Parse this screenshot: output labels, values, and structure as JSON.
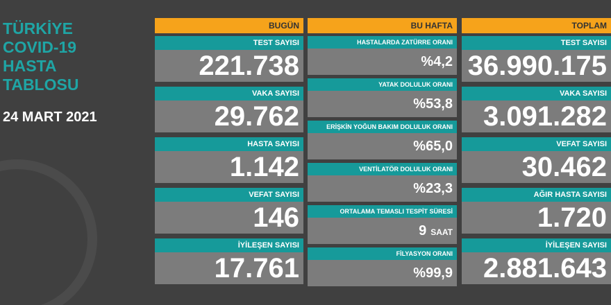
{
  "header": {
    "title_lines": [
      "TÜRKİYE",
      "COVID-19",
      "HASTA",
      "TABLOSU"
    ],
    "date": "24 MART 2021"
  },
  "columns": [
    {
      "title": "BUGÜN",
      "cells": [
        {
          "label": "TEST SAYISI",
          "value": "221.738"
        },
        {
          "label": "VAKA SAYISI",
          "value": "29.762"
        },
        {
          "label": "HASTA SAYISI",
          "value": "1.142"
        },
        {
          "label": "VEFAT SAYISI",
          "value": "146"
        },
        {
          "label": "İYİLEŞEN SAYISI",
          "value": "17.761"
        }
      ]
    },
    {
      "title": "BU HAFTA",
      "cells": [
        {
          "label": "HASTALARDA ZATÜRRE ORANI",
          "value": "%4,2"
        },
        {
          "label": "YATAK DOLULUK ORANI",
          "value": "%53,8"
        },
        {
          "label": "ERİŞKİN YOĞUN BAKIM DOLULUK ORANI",
          "value": "%65,0"
        },
        {
          "label": "VENTİLATÖR DOLULUK ORANI",
          "value": "%23,3"
        },
        {
          "label": "ORTALAMA TEMASLI TESPİT SÜRESİ",
          "value": "9",
          "unit": "SAAT"
        },
        {
          "label": "FİLYASYON ORANI",
          "value": "%99,9"
        }
      ]
    },
    {
      "title": "TOPLAM",
      "cells": [
        {
          "label": "TEST SAYISI",
          "value": "36.990.175"
        },
        {
          "label": "VAKA SAYISI",
          "value": "3.091.282"
        },
        {
          "label": "VEFAT SAYISI",
          "value": "30.462"
        },
        {
          "label": "AĞIR HASTA SAYISI",
          "value": "1.720"
        },
        {
          "label": "İYİLEŞEN SAYISI",
          "value": "2.881.643"
        }
      ]
    }
  ]
}
